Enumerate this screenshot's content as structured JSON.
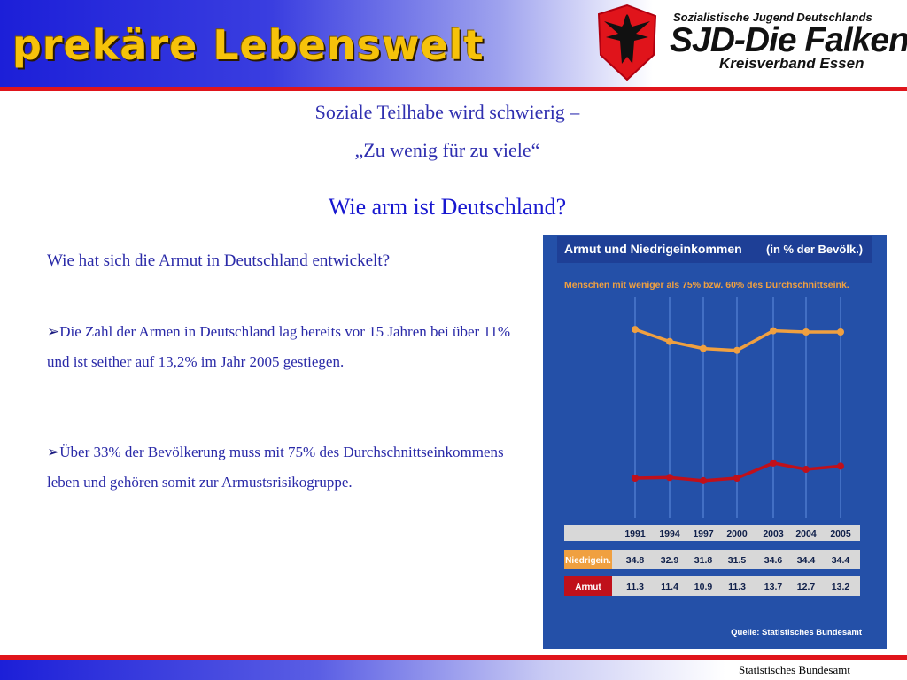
{
  "header": {
    "title": "prekäre Lebenswelt",
    "org_line1": "Sozialistische Jugend Deutschlands",
    "org_name": "SJD-Die Falken",
    "org_line3": "Kreisverband Essen"
  },
  "slide": {
    "subtitle1": "Soziale Teilhabe wird schwierig –",
    "subtitle2": "„Zu wenig für zu viele“",
    "question": "Wie arm ist Deutschland?",
    "question2": "Wie hat sich die Armut in Deutschland entwickelt?",
    "bullet1": "Die Zahl der Armen in Deutschland lag bereits vor 15 Jahren bei über 11% und ist seither auf 13,2% im Jahr 2005 gestiegen.",
    "bullet2": "Über 33% der Bevölkerung muss mit 75% des Durchschnittseinkommens leben und gehören somit zur Armustsrisikogruppe.",
    "footer_source": "Statistisches Bundesamt"
  },
  "chart_data": {
    "type": "line",
    "title": "Armut und Niedrigeinkommen",
    "title_unit": "(in % der Bevölk.)",
    "subtitle": "Menschen mit weniger als 75% bzw. 60% des Durchschnittseink.",
    "x": [
      "1991",
      "1994",
      "1997",
      "2000",
      "2003",
      "2004",
      "2005"
    ],
    "series": [
      {
        "name": "Niedrigein.",
        "values": [
          34.8,
          32.9,
          31.8,
          31.5,
          34.6,
          34.4,
          34.4
        ],
        "color": "#f0a040"
      },
      {
        "name": "Armut",
        "values": [
          11.3,
          11.4,
          10.9,
          11.3,
          13.7,
          12.7,
          13.2
        ],
        "color": "#c0101a"
      }
    ],
    "source": "Quelle: Statistisches Bundesamt",
    "colors": {
      "background": "#2450a8",
      "table_row": "#d8d8d8",
      "orange": "#f0a040",
      "red": "#c0101a"
    }
  }
}
